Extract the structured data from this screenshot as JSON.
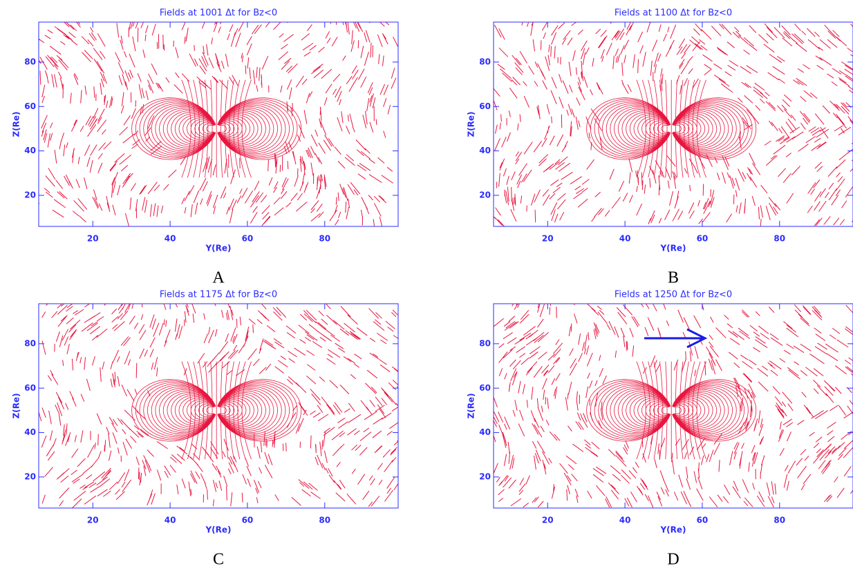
{
  "chart_data": [
    {
      "type": "vector_field",
      "title": "Fields at 1001 Δt for Bz<0",
      "x_label": "Y(Re)",
      "y_label": "Z(Re)",
      "panel_label": "A",
      "color": "#e8163f",
      "axis_color": "#2b2bff",
      "xlim": [
        6,
        99
      ],
      "ylim": [
        6,
        98
      ],
      "xticks": [
        20,
        40,
        60,
        80
      ],
      "yticks": [
        20,
        40,
        60,
        80
      ]
    },
    {
      "type": "vector_field",
      "title": "Fields at 1100 Δt for Bz<0",
      "x_label": "Y(Re)",
      "y_label": "Z(Re)",
      "panel_label": "B",
      "color": "#e8163f",
      "axis_color": "#2b2bff",
      "xlim": [
        6,
        99
      ],
      "ylim": [
        6,
        98
      ],
      "xticks": [
        20,
        40,
        60,
        80
      ],
      "yticks": [
        20,
        40,
        60,
        80
      ]
    },
    {
      "type": "vector_field",
      "title": "Fields at 1175 Δt for Bz<0",
      "x_label": "Y(Re)",
      "y_label": "Z(Re)",
      "panel_label": "C",
      "color": "#e8163f",
      "axis_color": "#2b2bff",
      "xlim": [
        6,
        99
      ],
      "ylim": [
        6,
        98
      ],
      "xticks": [
        20,
        40,
        60,
        80
      ],
      "yticks": [
        20,
        40,
        60,
        80
      ]
    },
    {
      "type": "vector_field",
      "title": "Fields at 1250 Δt for Bz<0",
      "x_label": "Y(Re)",
      "y_label": "Z(Re)",
      "panel_label": "D",
      "color": "#e8163f",
      "axis_color": "#2b2bff",
      "xlim": [
        6,
        99
      ],
      "ylim": [
        6,
        98
      ],
      "xticks": [
        20,
        40,
        60,
        80
      ],
      "yticks": [
        20,
        40,
        60,
        80
      ]
    }
  ]
}
